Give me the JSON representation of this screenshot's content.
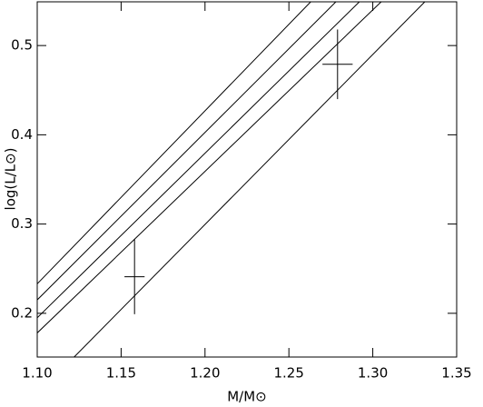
{
  "chart_data": {
    "type": "line",
    "xlabel": "M/M⊙",
    "ylabel": "log(L/L⊙)",
    "xlim": [
      1.1,
      1.35
    ],
    "ylim": [
      0.151,
      0.549
    ],
    "xticks": [
      {
        "value": 1.1,
        "label": "1.10"
      },
      {
        "value": 1.15,
        "label": "1.15"
      },
      {
        "value": 1.2,
        "label": "1.20"
      },
      {
        "value": 1.25,
        "label": "1.25"
      },
      {
        "value": 1.3,
        "label": "1.30"
      },
      {
        "value": 1.35,
        "label": "1.35"
      }
    ],
    "yticks": [
      0.2,
      0.3,
      0.4,
      0.5
    ],
    "color": "#000000",
    "series": [
      {
        "x": [
          1.1,
          1.263
        ],
        "values": [
          0.233,
          0.549
        ]
      },
      {
        "x": [
          1.1,
          1.278
        ],
        "values": [
          0.215,
          0.549
        ]
      },
      {
        "x": [
          1.1,
          1.292
        ],
        "values": [
          0.195,
          0.549
        ]
      },
      {
        "x": [
          1.1,
          1.305
        ],
        "values": [
          0.178,
          0.549
        ]
      },
      {
        "x": [
          1.122,
          1.331
        ],
        "values": [
          0.151,
          0.549
        ]
      }
    ],
    "points": {
      "x": [
        1.158,
        1.279
      ],
      "y": [
        0.241,
        0.479
      ],
      "xerr": [
        0.006,
        0.009
      ],
      "yerr": [
        0.042,
        0.039
      ]
    }
  }
}
